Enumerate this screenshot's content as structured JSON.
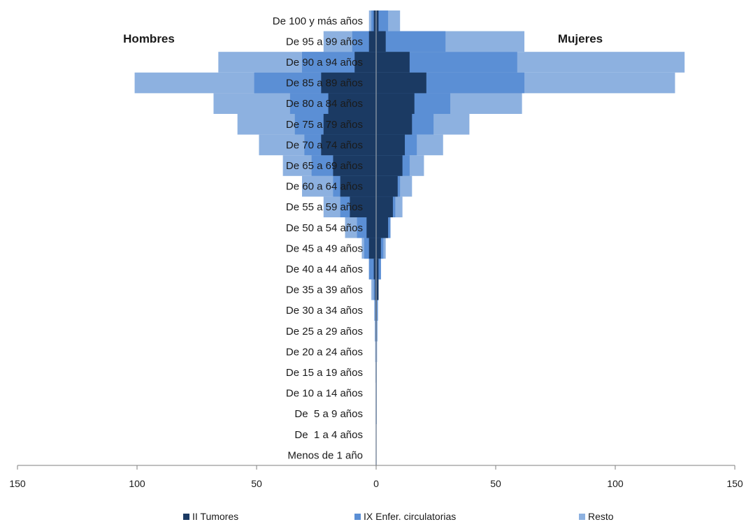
{
  "chart_data": {
    "type": "bar",
    "orientation": "horizontal",
    "layout": "population-pyramid",
    "left_label": "Hombres",
    "right_label": "Mujeres",
    "categories": [
      "De 100 y más años",
      "De 95 a 99 años",
      "De 90 a 94 años",
      "De 85 a 89 años",
      "De 80 a 84 años",
      "De 75 a 79 años",
      "De 70 a 74 años",
      "De 65 a 69 años",
      "De 60 a 64 años",
      "De 55 a 59 años",
      "De 50 a 54 años",
      "De 45 a 49 años",
      "De 40 a 44 años",
      "De 35 a 39 años",
      "De 30 a 34 años",
      "De 25 a 29 años",
      "De 20 a 24 años",
      "De 15 a 19 años",
      "De 10 a 14 años",
      "De  5 a 9 años",
      "De  1 a 4 años",
      "Menos de 1 año"
    ],
    "series": [
      {
        "name": "II Tumores",
        "color": "#1b3a63",
        "men": [
          1,
          3,
          9,
          23,
          20,
          22,
          23,
          18,
          15,
          11,
          4,
          3,
          1,
          0.5,
          0.3,
          0.2,
          0.1,
          0,
          0,
          0,
          0,
          0
        ],
        "women": [
          1,
          4,
          14,
          21,
          16,
          15,
          12,
          11,
          9,
          7,
          5,
          2,
          1,
          1,
          0.3,
          0.2,
          0.1,
          0,
          0,
          0,
          0,
          0
        ]
      },
      {
        "name": "IX Enfer. circulatorias",
        "color": "#5b8fd5",
        "men": [
          2,
          10,
          31,
          51,
          36,
          34,
          30,
          27,
          18,
          15,
          8,
          5,
          3,
          1,
          0.5,
          0.3,
          0.2,
          0.1,
          0,
          0,
          0,
          0
        ],
        "women": [
          5,
          29,
          59,
          62,
          31,
          24,
          17,
          14,
          10,
          8,
          6,
          3,
          2,
          1,
          0.5,
          0.3,
          0.2,
          0.1,
          0,
          0,
          0,
          0
        ]
      },
      {
        "name": "Resto",
        "color": "#8db1e0",
        "men": [
          3,
          22,
          66,
          101,
          68,
          58,
          49,
          39,
          31,
          22,
          13,
          6,
          3,
          2,
          0.8,
          0.6,
          0.4,
          0.3,
          0.2,
          0.2,
          0.1,
          0.1
        ],
        "women": [
          10,
          62,
          129,
          125,
          61,
          39,
          28,
          20,
          15,
          11,
          6,
          4,
          2,
          1,
          0.8,
          0.6,
          0.4,
          0.3,
          0.3,
          0.3,
          0.1,
          0.1
        ]
      }
    ],
    "xlim": [
      -150,
      150
    ],
    "x_ticks": [
      -150,
      -100,
      -50,
      0,
      50,
      100,
      150
    ],
    "x_tick_labels": [
      "150",
      "100",
      "50",
      "0",
      "50",
      "100",
      "150"
    ],
    "grid": false,
    "legend_position": "bottom"
  }
}
